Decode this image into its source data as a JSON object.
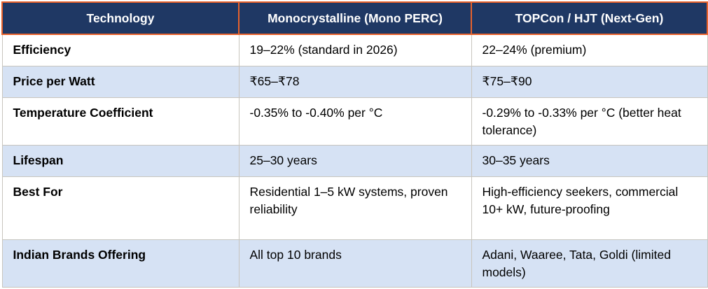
{
  "table": {
    "title_semantics": "Solar panel technology comparison table",
    "columns": [
      "Technology",
      "Monocrystalline (Mono PERC)",
      "TOPCon / HJT (Next-Gen)"
    ],
    "rows": [
      {
        "feature": "Efficiency",
        "mono": "19–22% (standard in 2026)",
        "topcon": "22–24% (premium)"
      },
      {
        "feature": "Price per Watt",
        "mono": "₹65–₹78",
        "topcon": "₹75–₹90"
      },
      {
        "feature": "Temperature Coefficient",
        "mono": "-0.35% to -0.40% per °C",
        "topcon": "-0.29% to -0.33% per °C (better heat tolerance)"
      },
      {
        "feature": "Lifespan",
        "mono": "25–30 years",
        "topcon": "30–35 years"
      },
      {
        "feature": "Best For",
        "mono": "Residential 1–5 kW systems, proven reliability",
        "topcon": "High-efficiency seekers, commercial 10+ kW, future-proofing"
      },
      {
        "feature": "Indian Brands Offering",
        "mono": "All top 10 brands",
        "topcon": "Adani, Waaree, Tata, Goldi (limited models)"
      }
    ],
    "colors": {
      "header_bg": "#1F3864",
      "header_text": "#FFFFFF",
      "header_border": "#E8622C",
      "row_alt_bg": "#D6E2F4",
      "row_bg": "#FFFFFF",
      "body_border": "#C8C5BE",
      "body_text": "#000000"
    }
  }
}
